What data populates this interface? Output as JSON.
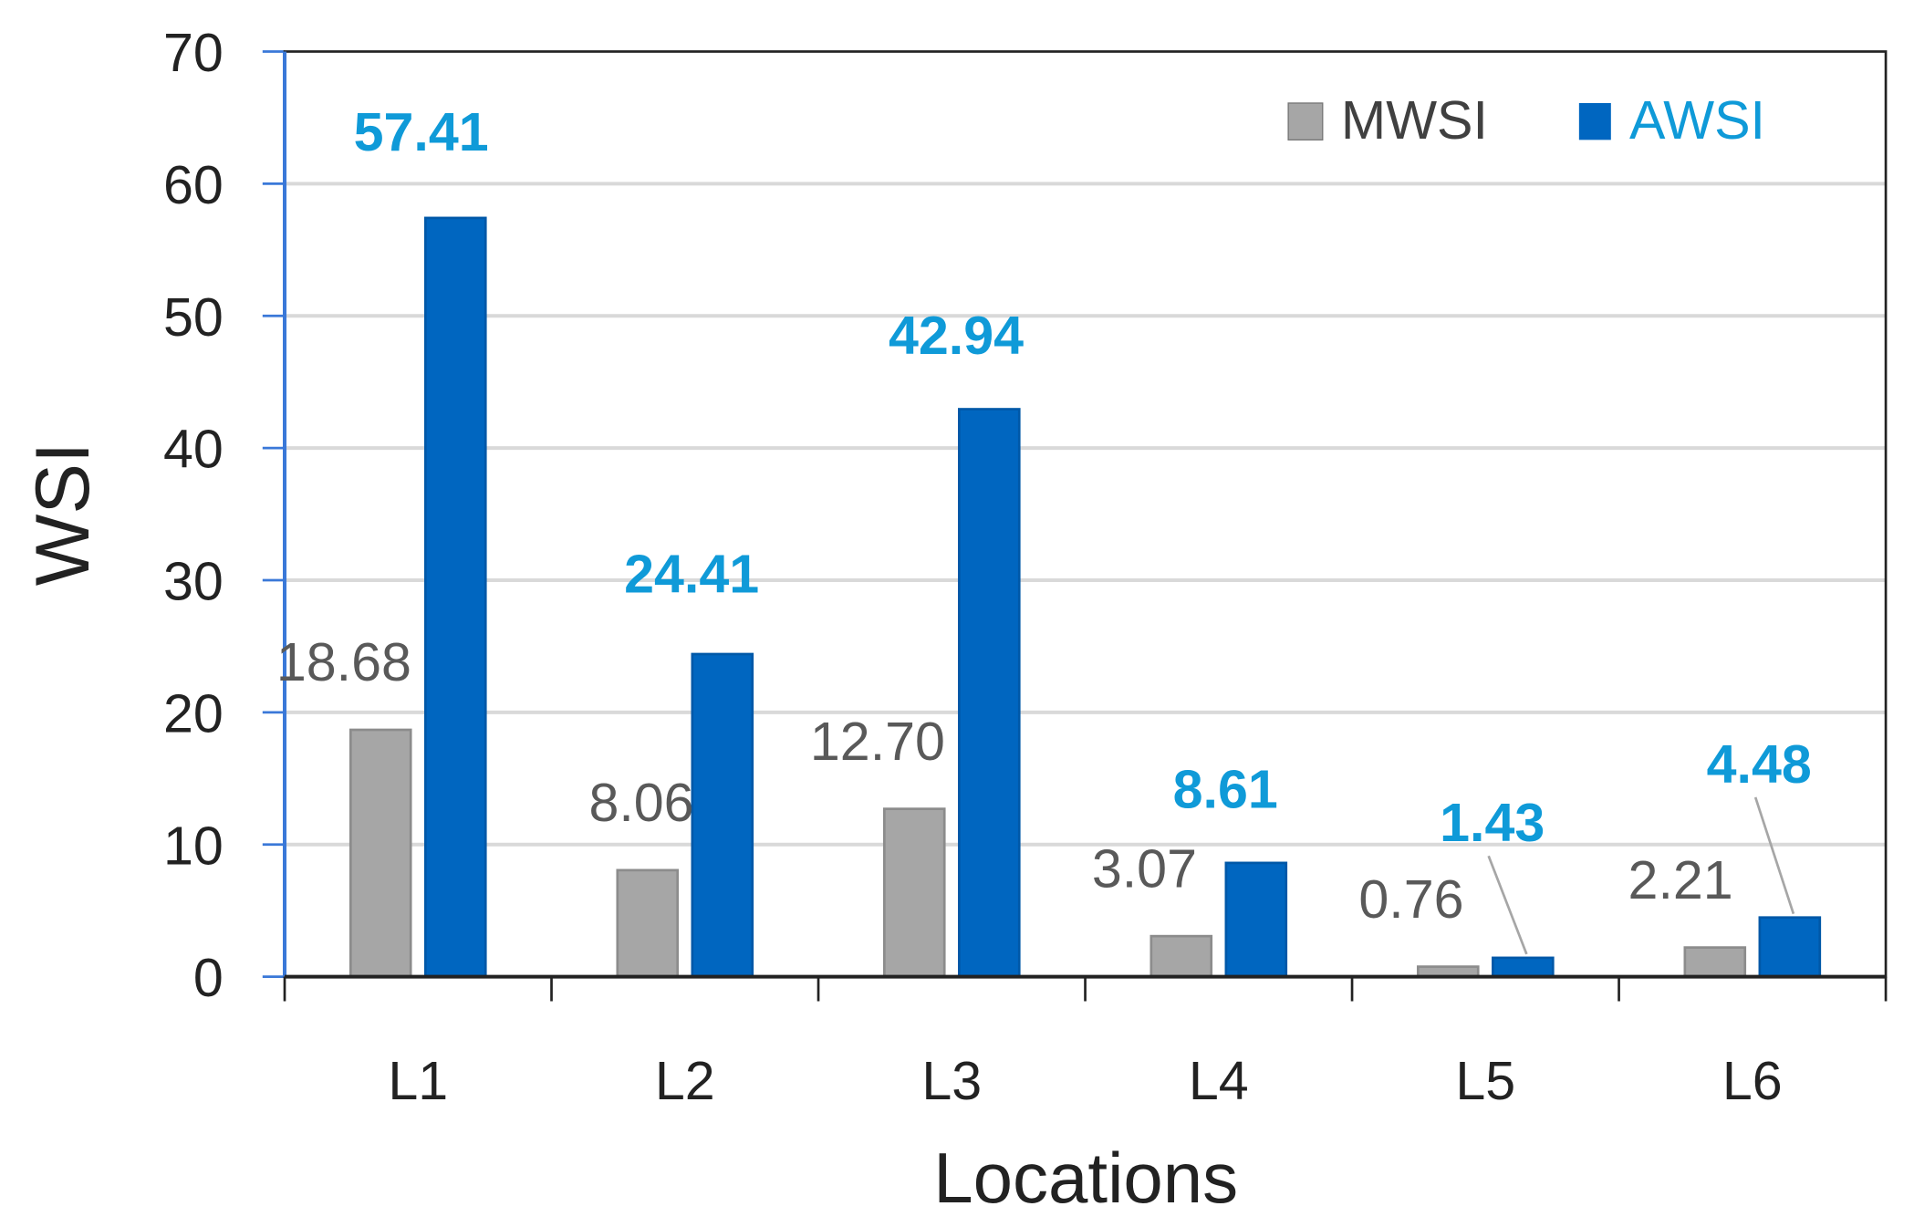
{
  "chart_data": {
    "type": "bar",
    "title": "",
    "xlabel": "Locations",
    "ylabel": "WSI",
    "ylim": [
      0,
      70
    ],
    "yticks": [
      0,
      10,
      20,
      30,
      40,
      50,
      60,
      70
    ],
    "grid": true,
    "legend_position": "top-right",
    "categories": [
      "L1",
      "L2",
      "L3",
      "L4",
      "L5",
      "L6"
    ],
    "series": [
      {
        "name": "MWSI",
        "color": "#a6a6a6",
        "label_color": "#595959",
        "values": [
          18.68,
          8.06,
          12.7,
          3.07,
          0.76,
          2.21
        ],
        "labels": [
          "18.68",
          "8.06",
          "12.70",
          "3.07",
          "0.76",
          "2.21"
        ]
      },
      {
        "name": "AWSI",
        "color": "#0066c0",
        "label_color": "#0f9ad8",
        "values": [
          57.41,
          24.41,
          42.94,
          8.61,
          1.43,
          4.48
        ],
        "labels": [
          "57.41",
          "24.41",
          "42.94",
          "8.61",
          "1.43",
          "4.48"
        ]
      }
    ]
  }
}
